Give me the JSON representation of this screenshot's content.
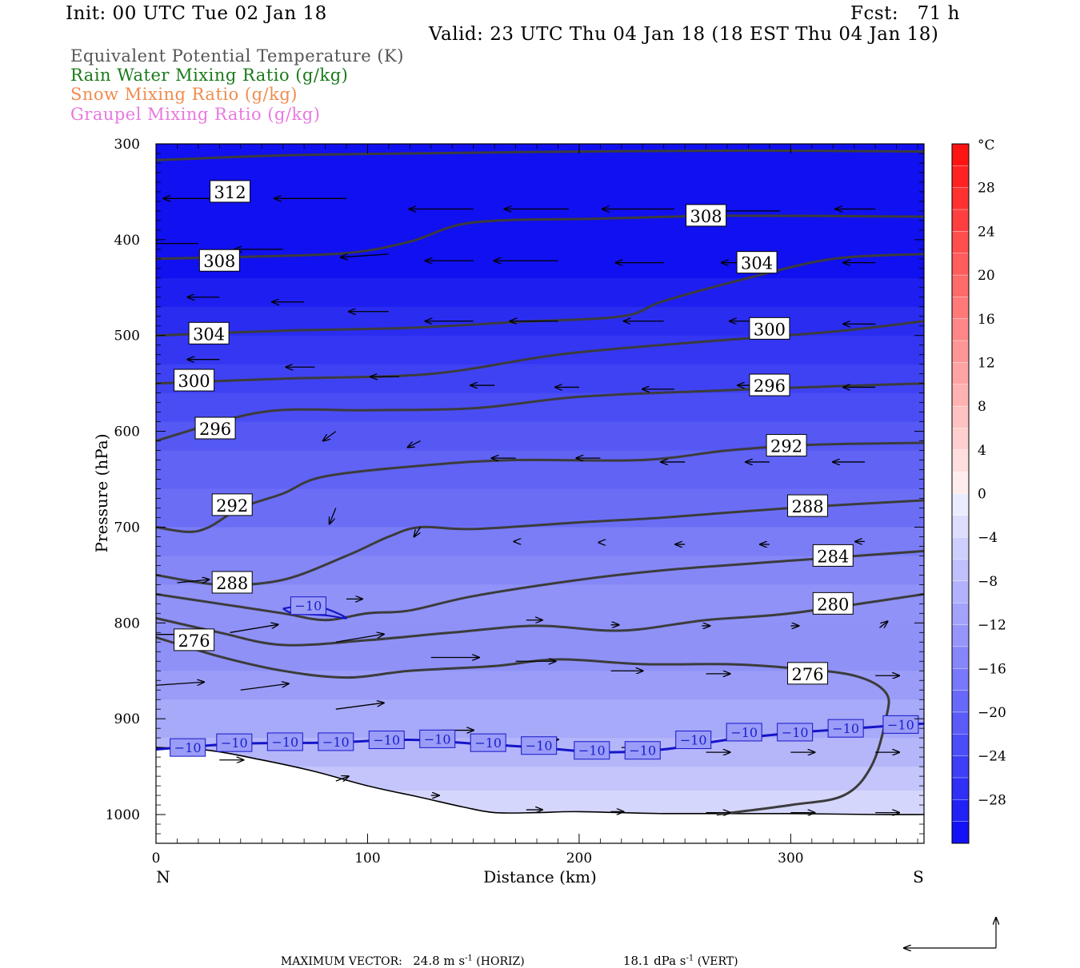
{
  "header": {
    "init": "Init: 00 UTC Tue 02 Jan 18",
    "fcst": "Fcst:   71 h",
    "valid": "Valid: 23 UTC Thu 04 Jan 18 (18 EST Thu 04 Jan 18)"
  },
  "fields": [
    {
      "label": "Equivalent Potential Temperature (K)",
      "color": "#555555"
    },
    {
      "label": "Rain Water Mixing Ratio (g/kg)",
      "color": "#1a7a1a"
    },
    {
      "label": "Snow Mixing Ratio (g/kg)",
      "color": "#f08c50"
    },
    {
      "label": "Graupel Mixing Ratio (g/kg)",
      "color": "#e878e0"
    }
  ],
  "chart_data": {
    "type": "cross-section",
    "xlabel": "Distance (km)",
    "ylabel": "Pressure (hPa)",
    "xlim": [
      0,
      363
    ],
    "ylim": [
      1030,
      300
    ],
    "x_ticks": [
      0,
      100,
      200,
      300
    ],
    "y_ticks": [
      300,
      400,
      500,
      600,
      700,
      800,
      900,
      1000
    ],
    "endpoints": {
      "left": "N",
      "right": "S"
    },
    "colorbar": {
      "unit": "°C",
      "range": [
        -32,
        32
      ],
      "tick_labels": [
        28,
        24,
        20,
        16,
        12,
        8,
        4,
        0,
        -4,
        -8,
        -12,
        -16,
        -20,
        -24,
        -28
      ]
    },
    "theta_e_contours": [
      {
        "value": 312,
        "points": [
          [
            0,
            317
          ],
          [
            60,
            312
          ],
          [
            120,
            310
          ],
          [
            200,
            308
          ],
          [
            280,
            307
          ],
          [
            363,
            308
          ]
        ]
      },
      {
        "value": 308,
        "points": [
          [
            0,
            420
          ],
          [
            40,
            418
          ],
          [
            90,
            414
          ],
          [
            120,
            402
          ],
          [
            150,
            382
          ],
          [
            210,
            378
          ],
          [
            270,
            375
          ],
          [
            363,
            376
          ]
        ]
      },
      {
        "value": 304,
        "points": [
          [
            0,
            500
          ],
          [
            60,
            495
          ],
          [
            120,
            492
          ],
          [
            170,
            486
          ],
          [
            220,
            480
          ],
          [
            240,
            464
          ],
          [
            280,
            440
          ],
          [
            320,
            420
          ],
          [
            363,
            415
          ]
        ]
      },
      {
        "value": 300,
        "points": [
          [
            0,
            550
          ],
          [
            60,
            545
          ],
          [
            130,
            540
          ],
          [
            190,
            520
          ],
          [
            250,
            508
          ],
          [
            320,
            496
          ],
          [
            363,
            485
          ]
        ]
      },
      {
        "value": 296,
        "points": [
          [
            0,
            610
          ],
          [
            50,
            580
          ],
          [
            100,
            578
          ],
          [
            150,
            576
          ],
          [
            200,
            564
          ],
          [
            260,
            558
          ],
          [
            320,
            553
          ],
          [
            363,
            550
          ]
        ]
      },
      {
        "value": 292,
        "points": [
          [
            0,
            700
          ],
          [
            15,
            705
          ],
          [
            25,
            700
          ],
          [
            40,
            680
          ],
          [
            60,
            665
          ],
          [
            80,
            647
          ],
          [
            130,
            635
          ],
          [
            170,
            630
          ],
          [
            230,
            630
          ],
          [
            270,
            620
          ],
          [
            310,
            614
          ],
          [
            363,
            612
          ]
        ]
      },
      {
        "value": 288,
        "points": [
          [
            0,
            750
          ],
          [
            30,
            760
          ],
          [
            60,
            755
          ],
          [
            90,
            730
          ],
          [
            110,
            710
          ],
          [
            125,
            700
          ],
          [
            150,
            702
          ],
          [
            200,
            695
          ],
          [
            240,
            690
          ],
          [
            300,
            680
          ],
          [
            363,
            672
          ]
        ]
      },
      {
        "value": 284,
        "points": [
          [
            0,
            770
          ],
          [
            30,
            780
          ],
          [
            60,
            790
          ],
          [
            80,
            797
          ],
          [
            100,
            790
          ],
          [
            120,
            787
          ],
          [
            150,
            772
          ],
          [
            200,
            755
          ],
          [
            240,
            745
          ],
          [
            300,
            735
          ],
          [
            363,
            725
          ]
        ]
      },
      {
        "value": 280,
        "points": [
          [
            0,
            795
          ],
          [
            30,
            810
          ],
          [
            60,
            823
          ],
          [
            100,
            818
          ],
          [
            140,
            810
          ],
          [
            180,
            803
          ],
          [
            220,
            808
          ],
          [
            260,
            797
          ],
          [
            300,
            790
          ],
          [
            363,
            770
          ]
        ]
      },
      {
        "value": 276,
        "points": [
          [
            0,
            815
          ],
          [
            30,
            835
          ],
          [
            60,
            850
          ],
          [
            90,
            857
          ],
          [
            120,
            850
          ],
          [
            160,
            845
          ],
          [
            190,
            838
          ],
          [
            230,
            843
          ],
          [
            270,
            843
          ],
          [
            300,
            847
          ],
          [
            330,
            855
          ],
          [
            345,
            873
          ],
          [
            345,
            900
          ],
          [
            338,
            950
          ],
          [
            325,
            980
          ],
          [
            300,
            990
          ],
          [
            265,
            1000
          ]
        ]
      }
    ],
    "contour_labels": [
      {
        "text": "312",
        "x": 35,
        "p": 350
      },
      {
        "text": "308",
        "x": 260,
        "p": 375
      },
      {
        "text": "308",
        "x": 30,
        "p": 422
      },
      {
        "text": "304",
        "x": 284,
        "p": 424
      },
      {
        "text": "304",
        "x": 25,
        "p": 498
      },
      {
        "text": "300",
        "x": 290,
        "p": 493
      },
      {
        "text": "300",
        "x": 18,
        "p": 547
      },
      {
        "text": "296",
        "x": 290,
        "p": 552
      },
      {
        "text": "296",
        "x": 28,
        "p": 597
      },
      {
        "text": "292",
        "x": 298,
        "p": 615
      },
      {
        "text": "292",
        "x": 36,
        "p": 677
      },
      {
        "text": "288",
        "x": 308,
        "p": 678
      },
      {
        "text": "288",
        "x": 36,
        "p": 758
      },
      {
        "text": "284",
        "x": 320,
        "p": 730
      },
      {
        "text": "280",
        "x": 320,
        "p": 780
      },
      {
        "text": "276",
        "x": 308,
        "p": 853
      },
      {
        "text": "276",
        "x": 18,
        "p": 818
      }
    ],
    "temp_minus10_isotherm": [
      [
        0,
        932
      ],
      [
        40,
        926
      ],
      [
        80,
        925
      ],
      [
        120,
        922
      ],
      [
        150,
        926
      ],
      [
        180,
        930
      ],
      [
        210,
        935
      ],
      [
        240,
        932
      ],
      [
        270,
        922
      ],
      [
        300,
        915
      ],
      [
        330,
        910
      ],
      [
        363,
        905
      ]
    ],
    "temp_minus10_closed": [
      [
        60,
        785
      ],
      [
        70,
        782
      ],
      [
        80,
        785
      ],
      [
        90,
        795
      ],
      [
        80,
        792
      ],
      [
        65,
        790
      ],
      [
        60,
        785
      ]
    ],
    "temp_labels": [
      {
        "text": "−10",
        "x": 15,
        "p": 930
      },
      {
        "text": "−10",
        "x": 37,
        "p": 925
      },
      {
        "text": "−10",
        "x": 61,
        "p": 924
      },
      {
        "text": "−10",
        "x": 85,
        "p": 924
      },
      {
        "text": "−10",
        "x": 109,
        "p": 922
      },
      {
        "text": "−10",
        "x": 133,
        "p": 921
      },
      {
        "text": "−10",
        "x": 157,
        "p": 925
      },
      {
        "text": "−10",
        "x": 181,
        "p": 928
      },
      {
        "text": "−10",
        "x": 206,
        "p": 933
      },
      {
        "text": "−10",
        "x": 230,
        "p": 933
      },
      {
        "text": "−10",
        "x": 254,
        "p": 922
      },
      {
        "text": "−10",
        "x": 278,
        "p": 914
      },
      {
        "text": "−10",
        "x": 302,
        "p": 914
      },
      {
        "text": "−10",
        "x": 326,
        "p": 910
      },
      {
        "text": "−10",
        "x": 352,
        "p": 906
      },
      {
        "text": "−10",
        "x": 72,
        "p": 782
      }
    ],
    "terrain": [
      [
        0,
        930
      ],
      [
        25,
        933
      ],
      [
        50,
        943
      ],
      [
        75,
        955
      ],
      [
        100,
        970
      ],
      [
        125,
        982
      ],
      [
        145,
        992
      ],
      [
        160,
        998
      ],
      [
        180,
        998
      ],
      [
        200,
        997
      ],
      [
        240,
        999
      ],
      [
        300,
        999
      ],
      [
        340,
        1000
      ],
      [
        363,
        1000
      ]
    ],
    "wind_vectors": [
      {
        "x": 30,
        "p": 357,
        "u": -35,
        "w": 0
      },
      {
        "x": 90,
        "p": 357,
        "u": -45,
        "w": 0
      },
      {
        "x": 150,
        "p": 368,
        "u": -40,
        "w": 0
      },
      {
        "x": 195,
        "p": 368,
        "u": -40,
        "w": 0
      },
      {
        "x": 245,
        "p": 368,
        "u": -45,
        "w": 0
      },
      {
        "x": 295,
        "p": 370,
        "u": -40,
        "w": 0
      },
      {
        "x": 340,
        "p": 368,
        "u": -25,
        "w": 0
      },
      {
        "x": 20,
        "p": 404,
        "u": -30,
        "w": 0
      },
      {
        "x": 60,
        "p": 410,
        "u": -30,
        "w": 0
      },
      {
        "x": 110,
        "p": 415,
        "u": -30,
        "w": 2
      },
      {
        "x": 150,
        "p": 422,
        "u": -30,
        "w": 0
      },
      {
        "x": 190,
        "p": 422,
        "u": -40,
        "w": 0
      },
      {
        "x": 240,
        "p": 424,
        "u": -30,
        "w": 0
      },
      {
        "x": 290,
        "p": 424,
        "u": -30,
        "w": 0
      },
      {
        "x": 340,
        "p": 424,
        "u": -20,
        "w": 0
      },
      {
        "x": 30,
        "p": 460,
        "u": -20,
        "w": 0
      },
      {
        "x": 70,
        "p": 465,
        "u": -20,
        "w": 0
      },
      {
        "x": 110,
        "p": 475,
        "u": -25,
        "w": 0
      },
      {
        "x": 150,
        "p": 485,
        "u": -30,
        "w": 0
      },
      {
        "x": 190,
        "p": 485,
        "u": -30,
        "w": 0
      },
      {
        "x": 240,
        "p": 485,
        "u": -25,
        "w": 0
      },
      {
        "x": 290,
        "p": 485,
        "u": -25,
        "w": 0
      },
      {
        "x": 340,
        "p": 488,
        "u": -20,
        "w": 0
      },
      {
        "x": 30,
        "p": 525,
        "u": -20,
        "w": 0
      },
      {
        "x": 75,
        "p": 533,
        "u": -18,
        "w": 0
      },
      {
        "x": 115,
        "p": 543,
        "u": -18,
        "w": 0
      },
      {
        "x": 160,
        "p": 552,
        "u": -15,
        "w": 0
      },
      {
        "x": 200,
        "p": 554,
        "u": -15,
        "w": 0
      },
      {
        "x": 245,
        "p": 556,
        "u": -20,
        "w": 0
      },
      {
        "x": 290,
        "p": 552,
        "u": -20,
        "w": 0
      },
      {
        "x": 340,
        "p": 554,
        "u": -20,
        "w": 0
      },
      {
        "x": 37,
        "p": 588,
        "u": -8,
        "w": 3
      },
      {
        "x": 85,
        "p": 600,
        "u": -8,
        "w": 6
      },
      {
        "x": 125,
        "p": 610,
        "u": -8,
        "w": 4
      },
      {
        "x": 170,
        "p": 628,
        "u": -15,
        "w": 0
      },
      {
        "x": 210,
        "p": 628,
        "u": -15,
        "w": 0
      },
      {
        "x": 250,
        "p": 632,
        "u": -15,
        "w": 0
      },
      {
        "x": 290,
        "p": 632,
        "u": -15,
        "w": 0
      },
      {
        "x": 335,
        "p": 632,
        "u": -20,
        "w": 0
      },
      {
        "x": 43,
        "p": 670,
        "u": 0,
        "w": 6
      },
      {
        "x": 85,
        "p": 680,
        "u": -4,
        "w": 10
      },
      {
        "x": 125,
        "p": 700,
        "u": -4,
        "w": 6
      },
      {
        "x": 170,
        "p": 715,
        "u": -1,
        "w": 0
      },
      {
        "x": 210,
        "p": 716,
        "u": -1,
        "w": 0
      },
      {
        "x": 250,
        "p": 718,
        "u": -6,
        "w": 0
      },
      {
        "x": 290,
        "p": 718,
        "u": -6,
        "w": 0
      },
      {
        "x": 335,
        "p": 715,
        "u": -6,
        "w": 0
      },
      {
        "x": 10,
        "p": 758,
        "u": 20,
        "w": -2
      },
      {
        "x": 90,
        "p": 775,
        "u": 10,
        "w": 0
      },
      {
        "x": 175,
        "p": 797,
        "u": 10,
        "w": 0
      },
      {
        "x": 215,
        "p": 802,
        "u": 5,
        "w": 0
      },
      {
        "x": 258,
        "p": 803,
        "u": 5,
        "w": 0
      },
      {
        "x": 300,
        "p": 803,
        "u": 5,
        "w": 0
      },
      {
        "x": 342,
        "p": 805,
        "u": 5,
        "w": -4
      },
      {
        "x": 0,
        "p": 812,
        "u": 20,
        "w": 0
      },
      {
        "x": 35,
        "p": 810,
        "u": 30,
        "w": -5
      },
      {
        "x": 85,
        "p": 820,
        "u": 30,
        "w": -5
      },
      {
        "x": 130,
        "p": 836,
        "u": 30,
        "w": 0
      },
      {
        "x": 170,
        "p": 840,
        "u": 25,
        "w": 0
      },
      {
        "x": 215,
        "p": 850,
        "u": 20,
        "w": 0
      },
      {
        "x": 260,
        "p": 853,
        "u": 15,
        "w": 0
      },
      {
        "x": 300,
        "p": 853,
        "u": 15,
        "w": 0
      },
      {
        "x": 340,
        "p": 855,
        "u": 15,
        "w": 0
      },
      {
        "x": 0,
        "p": 865,
        "u": 30,
        "w": -2
      },
      {
        "x": 40,
        "p": 870,
        "u": 30,
        "w": -4
      },
      {
        "x": 85,
        "p": 890,
        "u": 30,
        "w": -4
      },
      {
        "x": 135,
        "p": 912,
        "u": 20,
        "w": 0
      },
      {
        "x": 175,
        "p": 925,
        "u": 20,
        "w": -2
      },
      {
        "x": 220,
        "p": 930,
        "u": 20,
        "w": 0
      },
      {
        "x": 260,
        "p": 935,
        "u": 15,
        "w": 0
      },
      {
        "x": 300,
        "p": 935,
        "u": 15,
        "w": 0
      },
      {
        "x": 340,
        "p": 935,
        "u": 15,
        "w": 0
      },
      {
        "x": 30,
        "p": 943,
        "u": 15,
        "w": 0
      },
      {
        "x": 85,
        "p": 965,
        "u": 8,
        "w": -3
      },
      {
        "x": 130,
        "p": 980,
        "u": 5,
        "w": 0
      },
      {
        "x": 175,
        "p": 995,
        "u": 10,
        "w": 0
      },
      {
        "x": 215,
        "p": 997,
        "u": 8,
        "w": 0
      },
      {
        "x": 260,
        "p": 998,
        "u": 15,
        "w": 0
      },
      {
        "x": 300,
        "p": 998,
        "u": 15,
        "w": 0
      },
      {
        "x": 340,
        "p": 998,
        "u": 15,
        "w": 0
      }
    ],
    "maximum_vector": {
      "prefix": "MAXIMUM VECTOR:",
      "horizontal": "24.8 m s",
      "horizontal_exp": "-1",
      "horizontal_tag": " (HORIZ)",
      "vertical": "18.1 dPa s",
      "vertical_exp": "-1",
      "vertical_tag": " (VERT)"
    }
  }
}
